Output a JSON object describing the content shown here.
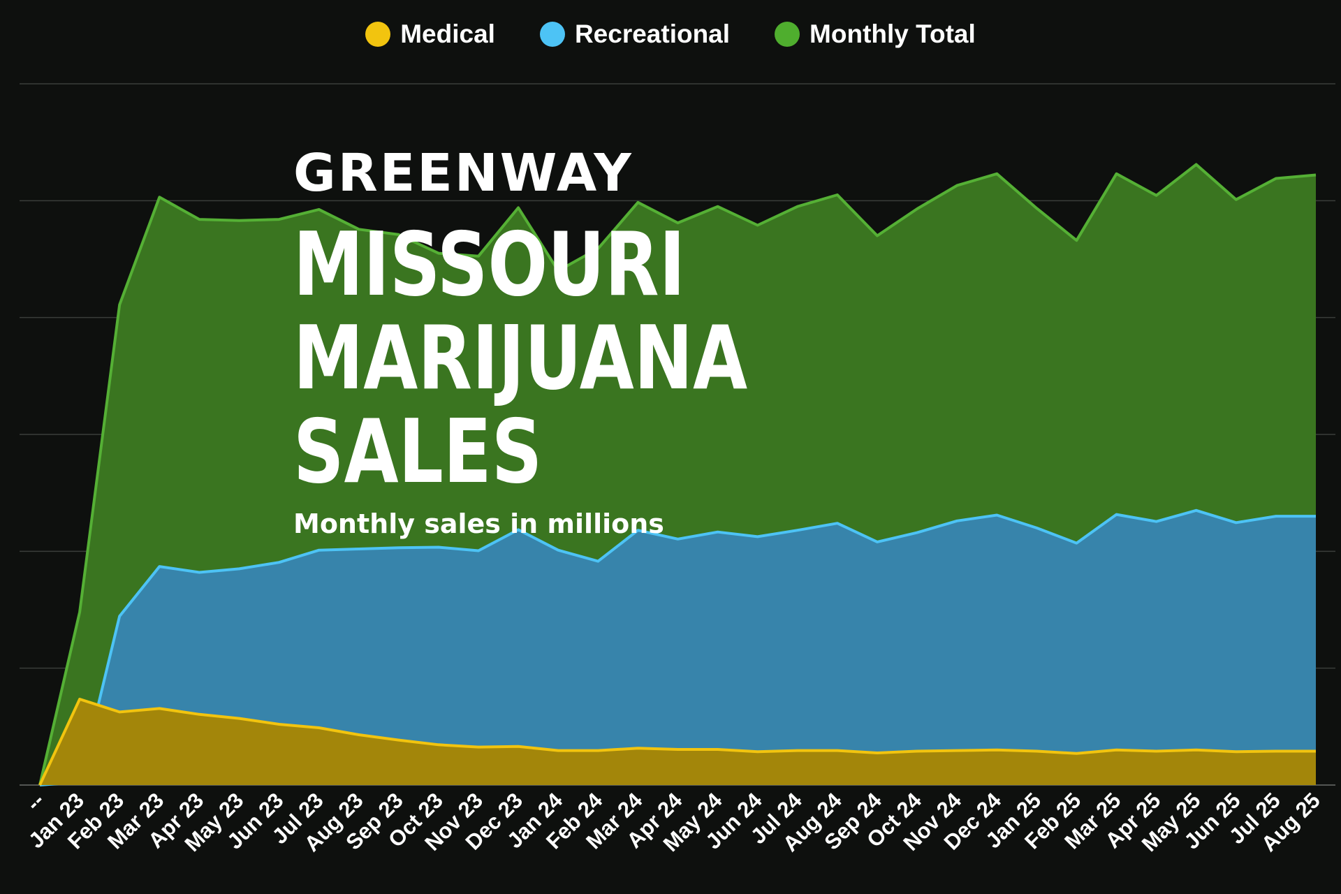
{
  "header": {
    "brand": "GREENWAY",
    "headline_lines": [
      "MISSOURI",
      "MARIJUANA",
      "SALES"
    ],
    "subtitle": "Monthly sales in millions"
  },
  "legend": [
    {
      "label": "Medical",
      "color": "#f2c40f"
    },
    {
      "label": "Recreational",
      "color": "#4dc3f5"
    },
    {
      "label": "Monthly Total",
      "color": "#4fae2e"
    }
  ],
  "colors": {
    "background": "#0e100e",
    "medical_fill": "#a3860a",
    "medical_line": "#f2c40f",
    "recreational_fill": "#3784ab",
    "recreational_line": "#4dc3f5",
    "total_fill": "#3a7520",
    "total_line": "#55b035",
    "gridline": "#3a3d3a"
  },
  "chart_data": {
    "type": "area",
    "title": "",
    "xlabel": "",
    "ylabel": "",
    "categories": [
      "--",
      "Jan 23",
      "Feb 23",
      "Mar 23",
      "Apr 23",
      "May 23",
      "Jun 23",
      "Jul 23",
      "Aug 23",
      "Sep 23",
      "Oct 23",
      "Nov 23",
      "Dec 23",
      "Jan 24",
      "Feb 24",
      "Mar 24",
      "Apr 24",
      "May 24",
      "Jun 24",
      "Jul 24",
      "Aug 24",
      "Sep 24",
      "Oct 24",
      "Nov 24",
      "Dec 24",
      "Jan 25",
      "Feb 25",
      "Mar 25",
      "Apr 25",
      "May 25",
      "Jun 25",
      "Jul 25",
      "Aug 25"
    ],
    "ylim": [
      0,
      120
    ],
    "grid": true,
    "legend_position": "top-center",
    "series": [
      {
        "name": "Medical",
        "values": [
          0,
          14.7,
          12.5,
          13.1,
          12.1,
          11.4,
          10.4,
          9.8,
          8.6,
          7.7,
          6.9,
          6.5,
          6.6,
          5.9,
          5.9,
          6.3,
          6.1,
          6.1,
          5.7,
          5.9,
          5.9,
          5.5,
          5.8,
          5.9,
          6.0,
          5.8,
          5.4,
          6.0,
          5.8,
          6.0,
          5.7,
          5.8,
          5.8
        ]
      },
      {
        "name": "Recreational",
        "values": [
          0,
          0.5,
          28.9,
          37.4,
          36.4,
          37.0,
          38.1,
          40.2,
          40.4,
          40.6,
          40.7,
          40.1,
          43.7,
          40.2,
          38.3,
          43.6,
          42.1,
          43.3,
          42.5,
          43.6,
          44.8,
          41.6,
          43.2,
          45.2,
          46.2,
          44.0,
          41.4,
          46.3,
          45.1,
          47.0,
          44.9,
          46.0,
          46.0
        ]
      },
      {
        "name": "Monthly Total",
        "values": [
          0,
          29.6,
          82.2,
          100.6,
          96.8,
          96.6,
          96.8,
          98.5,
          95.1,
          94.2,
          91.0,
          90.5,
          98.8,
          88.0,
          91.8,
          99.7,
          96.2,
          99.0,
          95.8,
          99.0,
          101.0,
          94.0,
          98.6,
          102.6,
          104.6,
          98.7,
          93.2,
          104.6,
          100.9,
          106.2,
          100.2,
          103.8,
          104.4
        ]
      }
    ]
  }
}
